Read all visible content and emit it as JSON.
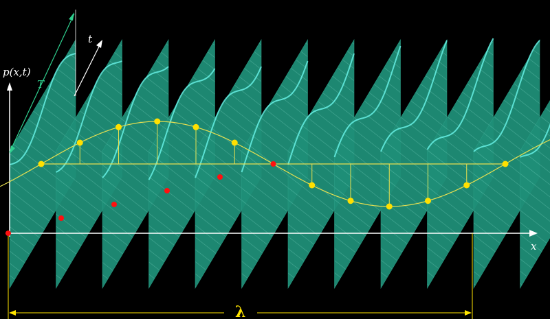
{
  "labels": {
    "y_axis": "p(x,t)",
    "x_axis": "x",
    "t_axis": "t",
    "period": "T",
    "wavelength": "λ"
  },
  "colors": {
    "background": "#000000",
    "plane_fill": "#1f8f78",
    "plane_hatch": "#6fd2bc",
    "inner_wave": "#66f0e4",
    "envelope": "#e8e050",
    "yellow_dot": "#ffe000",
    "red_dot": "#ff1010",
    "axis": "#ffffff",
    "period_label": "#2fd08f",
    "lambda": "#ffe400"
  },
  "wave": {
    "plane_count": 12,
    "sample_count": 12,
    "envelope_amplitude": 1.0,
    "red_dot_count": 5
  }
}
